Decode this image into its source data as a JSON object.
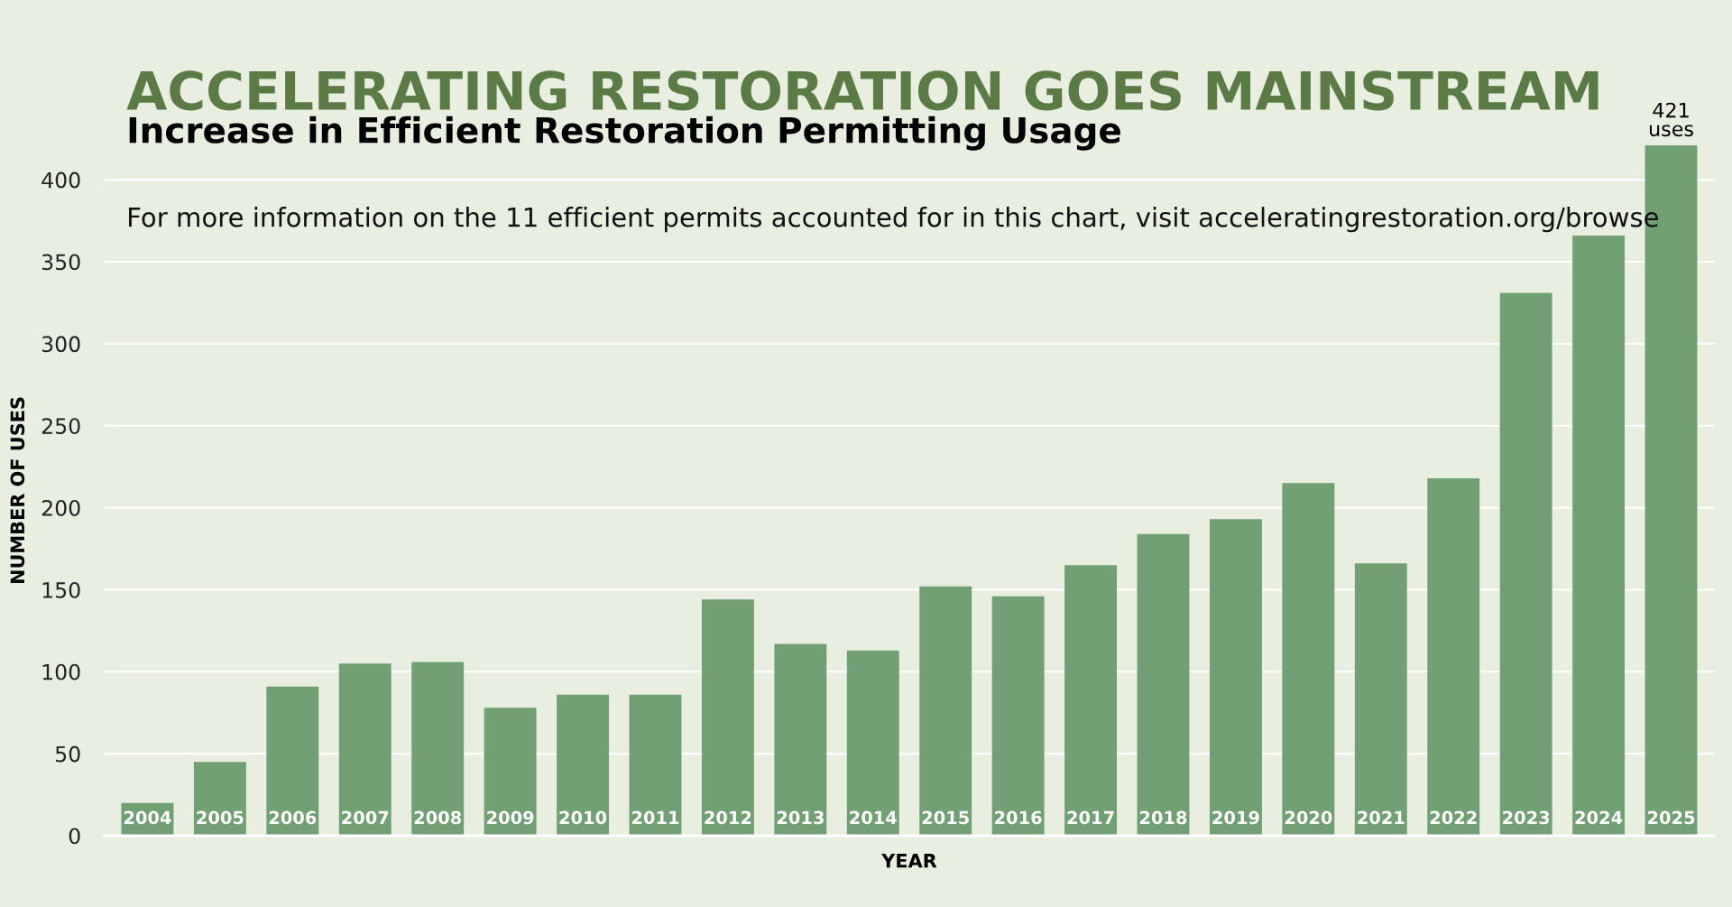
{
  "chart_data": {
    "type": "bar",
    "title": "ACCELERATING RESTORATION GOES MAINSTREAM",
    "subtitle": "Increase in Efficient Restoration Permitting Usage",
    "xlabel": "YEAR",
    "ylabel": "NUMBER OF USES",
    "categories": [
      "2004",
      "2005",
      "2006",
      "2007",
      "2008",
      "2009",
      "2010",
      "2011",
      "2012",
      "2013",
      "2014",
      "2015",
      "2016",
      "2017",
      "2018",
      "2019",
      "2020",
      "2021",
      "2022",
      "2023",
      "2024",
      "2025"
    ],
    "values": [
      20,
      45,
      91,
      105,
      106,
      78,
      86,
      86,
      144,
      117,
      113,
      152,
      146,
      165,
      184,
      193,
      215,
      166,
      218,
      331,
      366,
      421
    ],
    "color": "#72a074",
    "ylim": [
      0,
      421
    ],
    "yticks": [
      0,
      50,
      100,
      150,
      200,
      250,
      300,
      350,
      400
    ],
    "grid": "y",
    "annotations": [
      {
        "text": "421\nuses",
        "x": "2025",
        "y": 421
      },
      "For more information on the 11 efficient permits accounted for in this chart, visit acceleratingrestoration.org/browse"
    ]
  }
}
